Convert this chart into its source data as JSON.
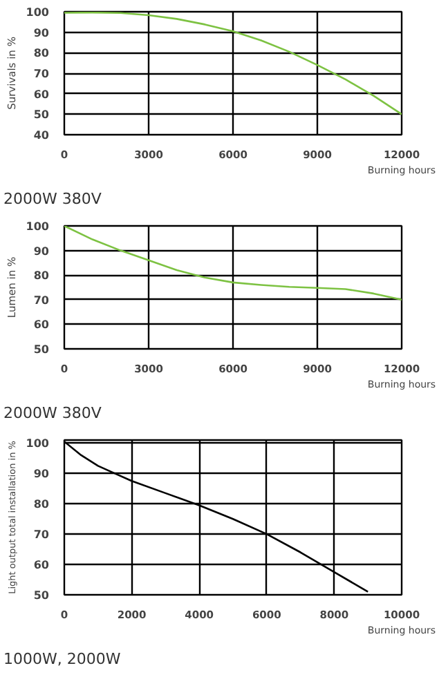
{
  "chart_data": [
    {
      "type": "line",
      "ylabel": "Survivals in %",
      "xlabel": "Burning hours",
      "annotations": [
        "2000W 380V"
      ],
      "x": [
        0,
        1000,
        2000,
        3000,
        4000,
        5000,
        6000,
        7000,
        8000,
        9000,
        10000,
        11000,
        12000
      ],
      "series": [
        {
          "color": "#7dc242",
          "values": [
            99.5,
            99.6,
            99.4,
            98.3,
            96.5,
            93.8,
            90.5,
            86,
            80.5,
            74,
            67,
            59,
            50
          ]
        }
      ],
      "xlim": [
        0,
        12000
      ],
      "xticks": [
        0,
        3000,
        6000,
        9000,
        12000
      ],
      "ylim": [
        40,
        100
      ],
      "yticks": [
        40,
        50,
        60,
        70,
        80,
        90,
        100
      ],
      "grid": true,
      "marker": "none",
      "line_style": "solid"
    },
    {
      "type": "line",
      "ylabel": "Lumen in %",
      "xlabel": "Burning hours",
      "annotations": [
        "2000W 380V"
      ],
      "x": [
        0,
        1000,
        2000,
        3000,
        4000,
        5000,
        6000,
        7000,
        8000,
        9000,
        10000,
        11000,
        12000
      ],
      "series": [
        {
          "color": "#7dc242",
          "values": [
            100,
            94.5,
            90,
            86,
            82,
            79,
            77,
            76,
            75.2,
            74.8,
            74.3,
            72.5,
            70
          ]
        }
      ],
      "xlim": [
        0,
        12000
      ],
      "xticks": [
        0,
        3000,
        6000,
        9000,
        12000
      ],
      "ylim": [
        50,
        100
      ],
      "yticks": [
        50,
        60,
        70,
        80,
        90,
        100
      ],
      "grid": true,
      "marker": "none",
      "line_style": "solid"
    },
    {
      "type": "line",
      "ylabel": "Light output total installation in %",
      "xlabel": "Burning hours",
      "annotations": [
        "1000W, 2000W"
      ],
      "x": [
        0,
        500,
        1000,
        1500,
        2000,
        3000,
        4000,
        5000,
        6000,
        7000,
        8000,
        9000
      ],
      "series": [
        {
          "color": "#000000",
          "values": [
            100.5,
            96,
            92.5,
            90,
            87.5,
            83.5,
            79.5,
            75,
            70,
            64,
            57.5,
            51
          ]
        }
      ],
      "xlim": [
        0,
        10000
      ],
      "xticks": [
        0,
        2000,
        4000,
        6000,
        8000,
        10000
      ],
      "ylim": [
        50,
        101
      ],
      "yticks": [
        50,
        60,
        70,
        80,
        90,
        100
      ],
      "grid": true,
      "marker": "none",
      "line_style": "solid"
    }
  ]
}
